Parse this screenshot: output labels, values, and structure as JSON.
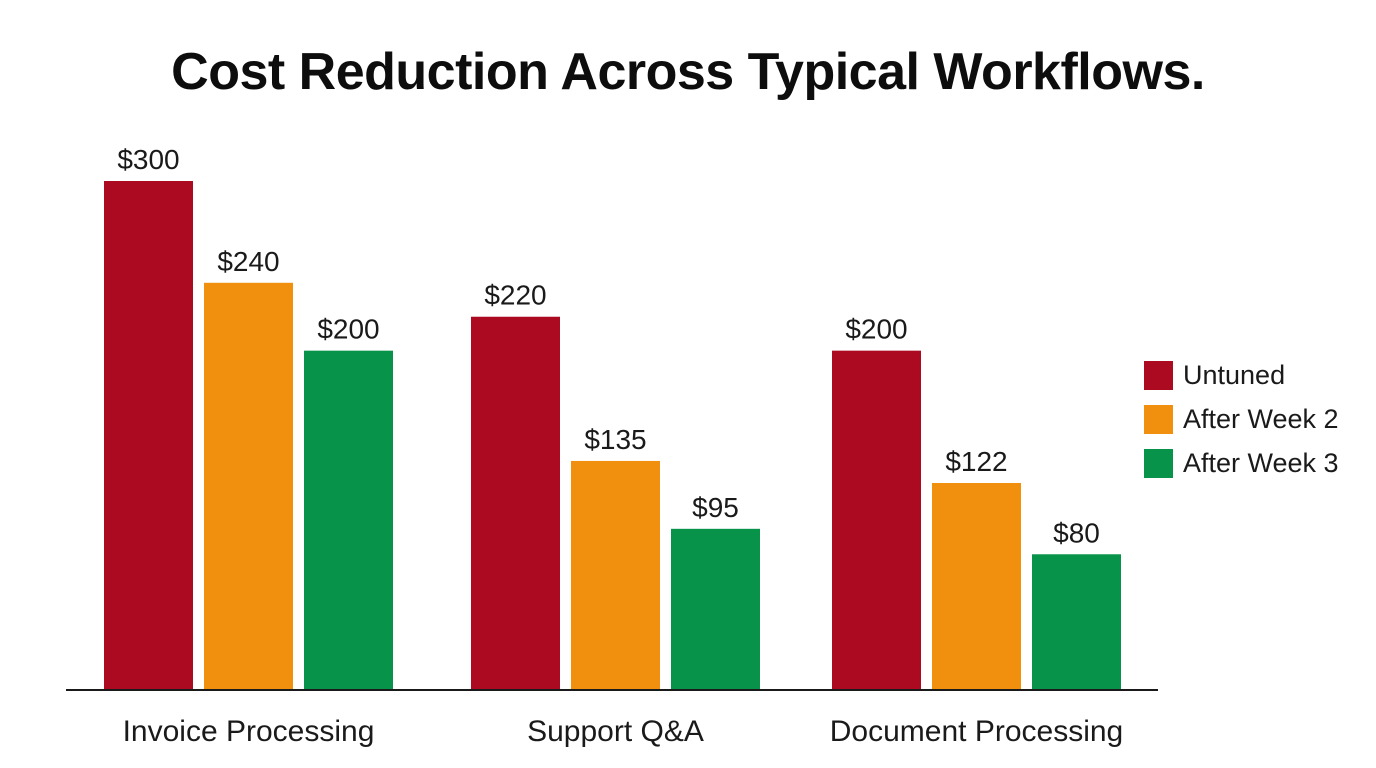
{
  "chart_data": {
    "type": "bar",
    "title": "Cost Reduction Across Typical Workflows.",
    "xlabel": "",
    "ylabel": "",
    "categories": [
      "Invoice Processing",
      "Support Q&A",
      "Document Processing"
    ],
    "series": [
      {
        "name": "Untuned",
        "color": "#ab0a20",
        "values": [
          300,
          220,
          200
        ],
        "labels": [
          "$300",
          "$220",
          "$200"
        ]
      },
      {
        "name": "After Week 2",
        "color": "#f0900e",
        "values": [
          240,
          135,
          122
        ],
        "labels": [
          "$240",
          "$135",
          "$122"
        ]
      },
      {
        "name": "After Week 3",
        "color": "#07944a",
        "values": [
          200,
          95,
          80
        ],
        "labels": [
          "$200",
          "$95",
          "$80"
        ]
      }
    ],
    "ylim": [
      0,
      300
    ],
    "grid": false,
    "legend_position": "right"
  }
}
